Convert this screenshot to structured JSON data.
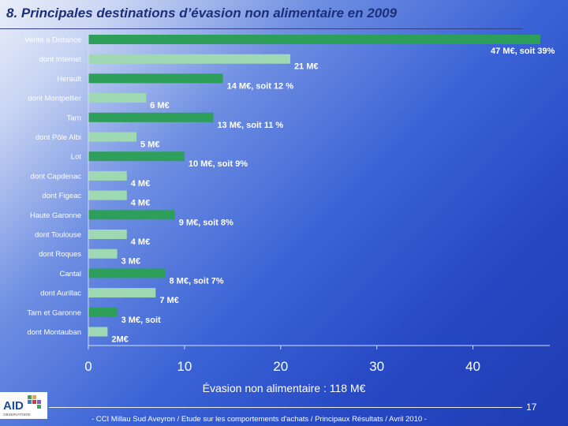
{
  "title": "8. Principales destinations d’évasion non alimentaire en 2009",
  "colors": {
    "primary_bar": "#2e9e5b",
    "secondary_bar": "#9fd9b4",
    "background_start": "#e9eef9",
    "background_end": "#1f3db3"
  },
  "chart_data": {
    "type": "bar",
    "orientation": "horizontal",
    "categories": [
      "Vente à Distance",
      "dont Internet",
      "Herault",
      "dont Montpellier",
      "Tarn",
      "dont Pôle Albi",
      "Lot",
      "dont Capdenac",
      "dont Figeac",
      "Haute Garonne",
      "dont Toulouse",
      "dont Roques",
      "Cantal",
      "dont Aurillac",
      "Tarn et Garonne",
      "dont Montauban"
    ],
    "values": [
      47,
      21,
      14,
      6,
      13,
      5,
      10,
      4,
      4,
      9,
      4,
      3,
      8,
      7,
      3,
      2
    ],
    "kinds": [
      "primary",
      "secondary",
      "primary",
      "secondary",
      "primary",
      "secondary",
      "primary",
      "secondary",
      "secondary",
      "primary",
      "secondary",
      "secondary",
      "primary",
      "secondary",
      "primary",
      "secondary"
    ],
    "data_labels": [
      "47 M€, soit 39%",
      "21 M€",
      "14 M€, soit 12 %",
      "6 M€",
      "13 M€, soit 11 %",
      "5 M€",
      "10 M€, soit 9%",
      "4 M€",
      "4 M€",
      "9 M€, soit 8%",
      "4 M€",
      "3 M€",
      "8 M€, soit 7%",
      "7 M€",
      "3 M€, soit",
      "2M€"
    ],
    "x_ticks": [
      0,
      10,
      20,
      30,
      40
    ],
    "xlim": [
      0,
      48
    ],
    "grid": false
  },
  "total_label": "Évasion non alimentaire : 118 M€",
  "page_number": "17",
  "footer": "- CCI Millau Sud Aveyron / Etude sur les comportements d'achats / Principaux Résultats / Avril 2010 -",
  "logo": {
    "text": "AID",
    "subtext": "OBSERVATOIRE",
    "icon": "aid-logo-icon"
  }
}
